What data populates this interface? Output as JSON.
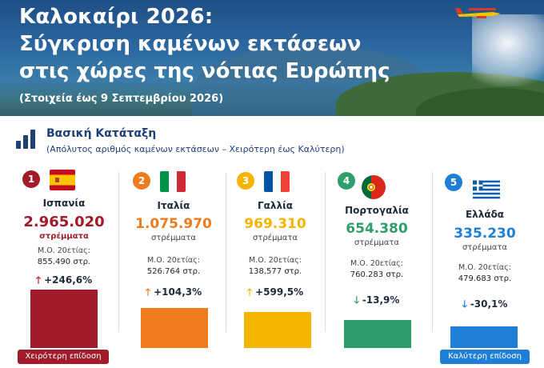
{
  "header": {
    "title_line1": "Καλοκαίρι 2026:",
    "title_line2": "Σύγκριση καμένων εκτάσεων",
    "title_line3": "στις χώρες της νότιας Ευρώπης",
    "subtitle": "(Στοιχεία έως 9 Σεπτεμβρίου 2026)"
  },
  "ranking": {
    "title": "Βασική Κατάταξη",
    "subtitle": "(Απόλυτος αριθμός καμένων εκτάσεων – Χειρότερη έως Καλύτερη)"
  },
  "countries": [
    {
      "rank": "1",
      "name": "Ισπανία",
      "value": "2.965.020",
      "unit": "στρέμματα",
      "avg_label": "Μ.Ο. 20ετίας:",
      "avg_value": "855.490 στρ.",
      "change": "+246,6%",
      "direction": "up",
      "color": "#a01c2a",
      "unit_color": "#a01c2a",
      "bar_fill": 1.0
    },
    {
      "rank": "2",
      "name": "Ιταλία",
      "value": "1.075.970",
      "unit": "στρέμματα",
      "avg_label": "Μ.Ο. 20ετίας:",
      "avg_value": "526.764 στρ.",
      "change": "+104,3%",
      "direction": "up",
      "color": "#ee7c1e",
      "unit_color": "#444444",
      "bar_fill": 0.63
    },
    {
      "rank": "3",
      "name": "Γαλλία",
      "value": "969.310",
      "unit": "στρέμματα",
      "avg_label": "Μ.Ο. 20ετίας:",
      "avg_value": "138.577 στρ.",
      "change": "+599,5%",
      "direction": "up",
      "color": "#f4b400",
      "unit_color": "#444444",
      "bar_fill": 0.57
    },
    {
      "rank": "4",
      "name": "Πορτογαλία",
      "value": "654.380",
      "unit": "στρέμματα",
      "avg_label": "Μ.Ο. 20ετίας:",
      "avg_value": "760.283 στρ.",
      "change": "-13,9%",
      "direction": "down",
      "color": "#2f9e6a",
      "unit_color": "#444444",
      "bar_fill": 0.44
    },
    {
      "rank": "5",
      "name": "Ελλάδα",
      "value": "335.230",
      "unit": "στρέμματα",
      "avg_label": "Μ.Ο. 20ετίας:",
      "avg_value": "479.683 στρ.",
      "change": "-30,1%",
      "direction": "down",
      "color": "#1f7fd6",
      "unit_color": "#444444",
      "bar_fill": 0.31
    }
  ],
  "footer": {
    "worst_label": "Χειρότερη επίδοση",
    "best_label": "Καλύτερη επίδοση",
    "worst_color": "#a01c2a",
    "best_color": "#1f7fd6"
  },
  "icons": [
    "bar-chart-icon",
    "firefighting-plane-icon",
    "arrow-up-icon",
    "arrow-down-icon"
  ]
}
